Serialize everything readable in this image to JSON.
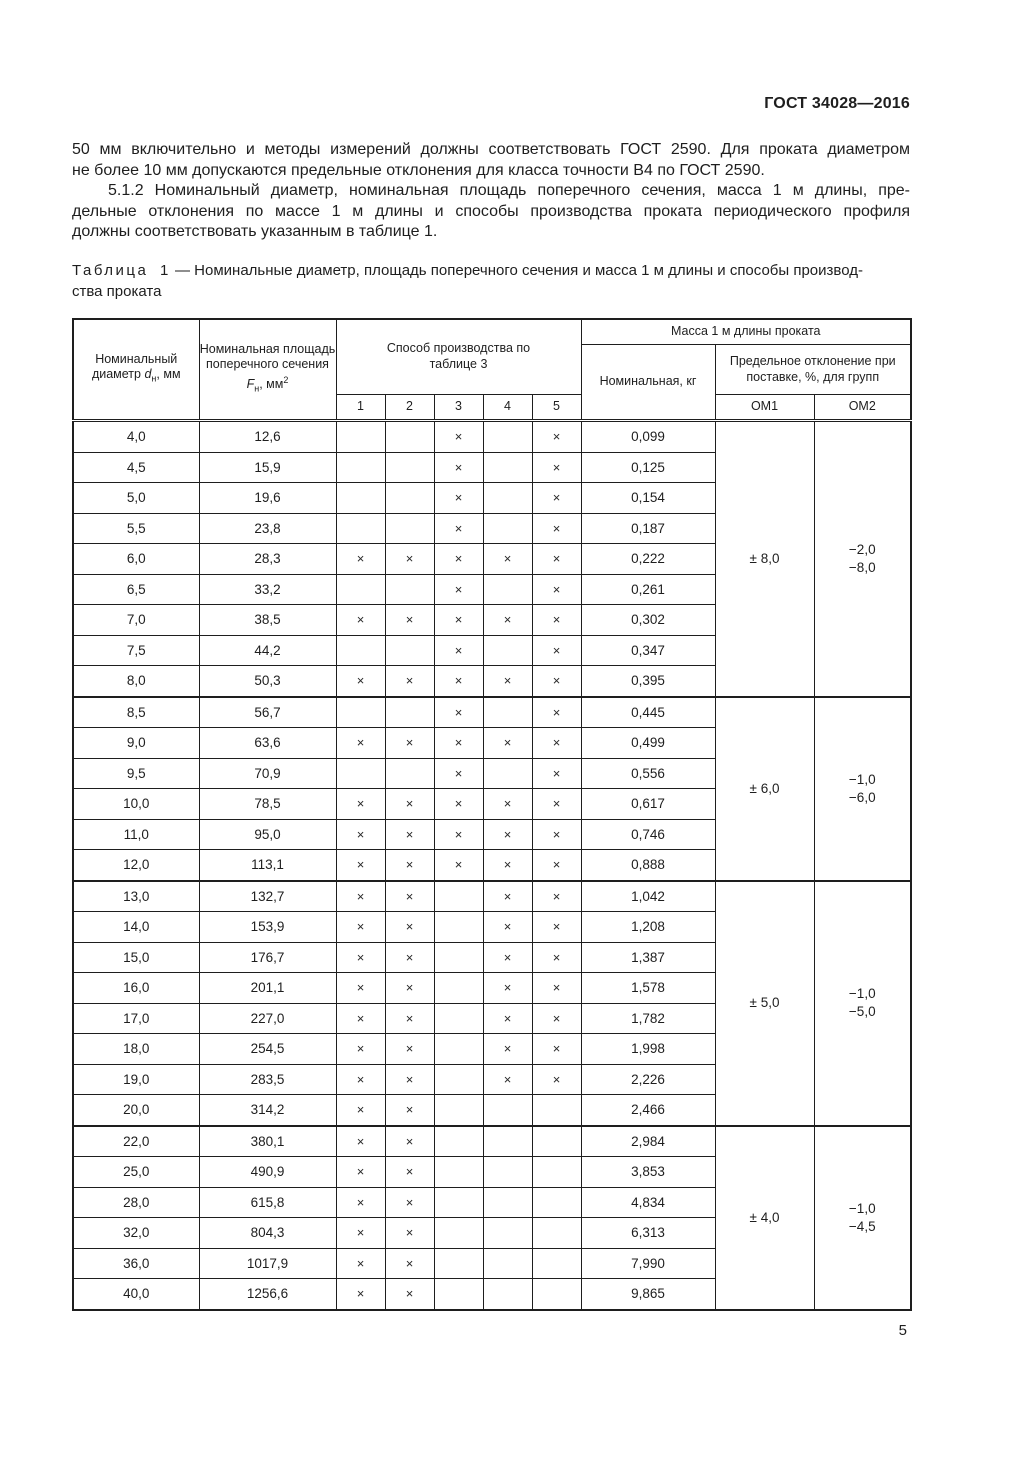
{
  "doc": {
    "number": "ГОСТ 34028—2016",
    "page_number": "5"
  },
  "paragraphs": {
    "p1": [
      "50 мм включительно и методы измерений должны соответствовать ГОСТ 2590. Для проката диаметром",
      "не более 10 мм допускаются предельные отклонения для класса точности В4 по ГОСТ 2590."
    ],
    "p2": [
      "5.1.2 Номинальный диаметр, номинальная площадь поперечного сечения, масса 1 м длины, пре-",
      "дельные отклонения по массе 1 м длины и способы производства проката периодического профиля",
      "должны соответствовать указанным в таблице 1."
    ]
  },
  "caption": {
    "label": "Таблица 1",
    "dash": "—",
    "text_line1": "Номинальные диаметр, площадь поперечного сечения и масса 1 м длины и способы производ-",
    "text_line2": "ства проката"
  },
  "table": {
    "header": {
      "diameter": {
        "text": "Номинальный диаметр ",
        "sym": "d",
        "sub": "н",
        "unit": ", мм"
      },
      "area": {
        "text": "Номинальная площадь поперечного сечения ",
        "sym": "F",
        "sub": "н",
        "unit": ", мм",
        "sup": "2"
      },
      "method": "Способ производства по таблице 3",
      "method_cols": [
        "1",
        "2",
        "3",
        "4",
        "5"
      ],
      "mass_group": "Масса 1 м длины проката",
      "mass_nominal": "Номинальная, кг",
      "deviation": "Предельное отклонение при поставке, %, для групп",
      "om1": "ОМ1",
      "om2": "ОМ2"
    },
    "mark": "×",
    "groups": [
      {
        "om1": "± 8,0",
        "om2": [
          "−2,0",
          "−8,0"
        ],
        "rows": [
          {
            "d": "4,0",
            "area": "12,6",
            "m": [
              0,
              0,
              1,
              0,
              1
            ],
            "mass": "0,099"
          },
          {
            "d": "4,5",
            "area": "15,9",
            "m": [
              0,
              0,
              1,
              0,
              1
            ],
            "mass": "0,125"
          },
          {
            "d": "5,0",
            "area": "19,6",
            "m": [
              0,
              0,
              1,
              0,
              1
            ],
            "mass": "0,154"
          },
          {
            "d": "5,5",
            "area": "23,8",
            "m": [
              0,
              0,
              1,
              0,
              1
            ],
            "mass": "0,187"
          },
          {
            "d": "6,0",
            "area": "28,3",
            "m": [
              1,
              1,
              1,
              1,
              1
            ],
            "mass": "0,222"
          },
          {
            "d": "6,5",
            "area": "33,2",
            "m": [
              0,
              0,
              1,
              0,
              1
            ],
            "mass": "0,261"
          },
          {
            "d": "7,0",
            "area": "38,5",
            "m": [
              1,
              1,
              1,
              1,
              1
            ],
            "mass": "0,302"
          },
          {
            "d": "7,5",
            "area": "44,2",
            "m": [
              0,
              0,
              1,
              0,
              1
            ],
            "mass": "0,347"
          },
          {
            "d": "8,0",
            "area": "50,3",
            "m": [
              1,
              1,
              1,
              1,
              1
            ],
            "mass": "0,395"
          }
        ]
      },
      {
        "om1": "± 6,0",
        "om2": [
          "−1,0",
          "−6,0"
        ],
        "rows": [
          {
            "d": "8,5",
            "area": "56,7",
            "m": [
              0,
              0,
              1,
              0,
              1
            ],
            "mass": "0,445"
          },
          {
            "d": "9,0",
            "area": "63,6",
            "m": [
              1,
              1,
              1,
              1,
              1
            ],
            "mass": "0,499"
          },
          {
            "d": "9,5",
            "area": "70,9",
            "m": [
              0,
              0,
              1,
              0,
              1
            ],
            "mass": "0,556"
          },
          {
            "d": "10,0",
            "area": "78,5",
            "m": [
              1,
              1,
              1,
              1,
              1
            ],
            "mass": "0,617"
          },
          {
            "d": "11,0",
            "area": "95,0",
            "m": [
              1,
              1,
              1,
              1,
              1
            ],
            "mass": "0,746"
          },
          {
            "d": "12,0",
            "area": "113,1",
            "m": [
              1,
              1,
              1,
              1,
              1
            ],
            "mass": "0,888"
          }
        ]
      },
      {
        "om1": "± 5,0",
        "om2": [
          "−1,0",
          "−5,0"
        ],
        "rows": [
          {
            "d": "13,0",
            "area": "132,7",
            "m": [
              1,
              1,
              0,
              1,
              1
            ],
            "mass": "1,042"
          },
          {
            "d": "14,0",
            "area": "153,9",
            "m": [
              1,
              1,
              0,
              1,
              1
            ],
            "mass": "1,208"
          },
          {
            "d": "15,0",
            "area": "176,7",
            "m": [
              1,
              1,
              0,
              1,
              1
            ],
            "mass": "1,387"
          },
          {
            "d": "16,0",
            "area": "201,1",
            "m": [
              1,
              1,
              0,
              1,
              1
            ],
            "mass": "1,578"
          },
          {
            "d": "17,0",
            "area": "227,0",
            "m": [
              1,
              1,
              0,
              1,
              1
            ],
            "mass": "1,782"
          },
          {
            "d": "18,0",
            "area": "254,5",
            "m": [
              1,
              1,
              0,
              1,
              1
            ],
            "mass": "1,998"
          },
          {
            "d": "19,0",
            "area": "283,5",
            "m": [
              1,
              1,
              0,
              1,
              1
            ],
            "mass": "2,226"
          },
          {
            "d": "20,0",
            "area": "314,2",
            "m": [
              1,
              1,
              0,
              0,
              0
            ],
            "mass": "2,466"
          }
        ]
      },
      {
        "om1": "± 4,0",
        "om2": [
          "−1,0",
          "−4,5"
        ],
        "rows": [
          {
            "d": "22,0",
            "area": "380,1",
            "m": [
              1,
              1,
              0,
              0,
              0
            ],
            "mass": "2,984"
          },
          {
            "d": "25,0",
            "area": "490,9",
            "m": [
              1,
              1,
              0,
              0,
              0
            ],
            "mass": "3,853"
          },
          {
            "d": "28,0",
            "area": "615,8",
            "m": [
              1,
              1,
              0,
              0,
              0
            ],
            "mass": "4,834"
          },
          {
            "d": "32,0",
            "area": "804,3",
            "m": [
              1,
              1,
              0,
              0,
              0
            ],
            "mass": "6,313"
          },
          {
            "d": "36,0",
            "area": "1017,9",
            "m": [
              1,
              1,
              0,
              0,
              0
            ],
            "mass": "7,990"
          },
          {
            "d": "40,0",
            "area": "1256,6",
            "m": [
              1,
              1,
              0,
              0,
              0
            ],
            "mass": "9,865"
          }
        ]
      }
    ]
  }
}
